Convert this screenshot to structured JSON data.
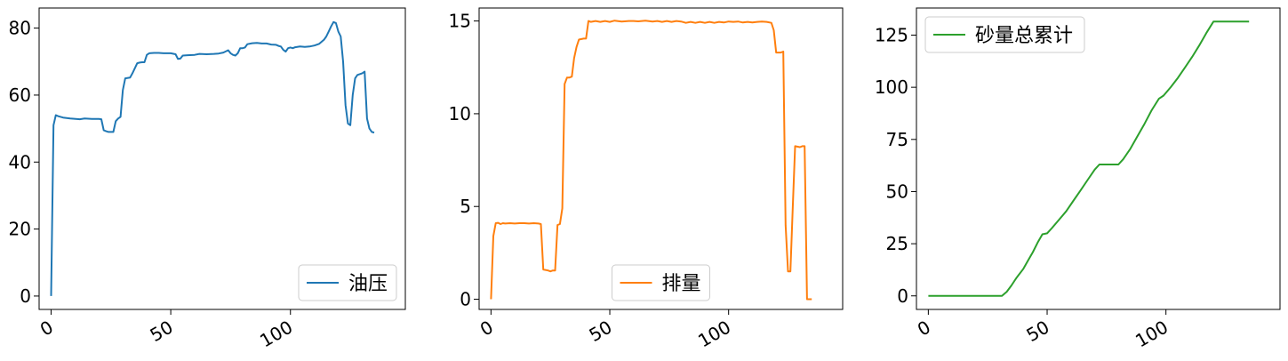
{
  "chart_data": [
    {
      "type": "line",
      "legend": "油压",
      "legend_position": "lower-right",
      "color": "#1f77b4",
      "xlim": [
        -5,
        148
      ],
      "ylim": [
        -4,
        86
      ],
      "xticks": [
        0,
        50,
        100
      ],
      "yticks": [
        0,
        20,
        40,
        60,
        80
      ],
      "series": [
        {
          "name": "油压",
          "points": [
            [
              0,
              0
            ],
            [
              1,
              51
            ],
            [
              2,
              54
            ],
            [
              3,
              53.7
            ],
            [
              5,
              53.3
            ],
            [
              8,
              53
            ],
            [
              12,
              52.8
            ],
            [
              14,
              53
            ],
            [
              17,
              52.9
            ],
            [
              20,
              52.9
            ],
            [
              21,
              52.8
            ],
            [
              22,
              49.5
            ],
            [
              23,
              49.2
            ],
            [
              24,
              49
            ],
            [
              25,
              49
            ],
            [
              26,
              49
            ],
            [
              27,
              52.2
            ],
            [
              28,
              53
            ],
            [
              29,
              53.5
            ],
            [
              30,
              61.5
            ],
            [
              31,
              65
            ],
            [
              33,
              65.2
            ],
            [
              34,
              66.5
            ],
            [
              36,
              69.5
            ],
            [
              37,
              69.7
            ],
            [
              38,
              69.8
            ],
            [
              39,
              69.8
            ],
            [
              40,
              72
            ],
            [
              41,
              72.5
            ],
            [
              43,
              72.6
            ],
            [
              45,
              72.6
            ],
            [
              47,
              72.5
            ],
            [
              50,
              72.5
            ],
            [
              52,
              72.2
            ],
            [
              53,
              70.8
            ],
            [
              54,
              70.9
            ],
            [
              55,
              71.8
            ],
            [
              57,
              71.9
            ],
            [
              60,
              72
            ],
            [
              62,
              72.3
            ],
            [
              65,
              72.2
            ],
            [
              68,
              72.3
            ],
            [
              70,
              72.4
            ],
            [
              72,
              72.7
            ],
            [
              74,
              73.4
            ],
            [
              75,
              72.5
            ],
            [
              76,
              72
            ],
            [
              77,
              71.8
            ],
            [
              78,
              72.5
            ],
            [
              79,
              74
            ],
            [
              80,
              74
            ],
            [
              81,
              74.2
            ],
            [
              82,
              75.2
            ],
            [
              84,
              75.5
            ],
            [
              86,
              75.6
            ],
            [
              88,
              75.4
            ],
            [
              90,
              75.4
            ],
            [
              92,
              75.1
            ],
            [
              94,
              75
            ],
            [
              95,
              74.7
            ],
            [
              96,
              74.5
            ],
            [
              97,
              73.5
            ],
            [
              98,
              73
            ],
            [
              99,
              74
            ],
            [
              100,
              74.2
            ],
            [
              101,
              74
            ],
            [
              102,
              74.3
            ],
            [
              104,
              74.5
            ],
            [
              106,
              74.4
            ],
            [
              108,
              74.5
            ],
            [
              110,
              74.8
            ],
            [
              112,
              75.3
            ],
            [
              114,
              76.5
            ],
            [
              115,
              77.5
            ],
            [
              116,
              79
            ],
            [
              117,
              80.5
            ],
            [
              118,
              81.8
            ],
            [
              119,
              81.5
            ],
            [
              120,
              79
            ],
            [
              121,
              77.5
            ],
            [
              122,
              70
            ],
            [
              123,
              57
            ],
            [
              124,
              51.5
            ],
            [
              125,
              51
            ],
            [
              126,
              60
            ],
            [
              127,
              65
            ],
            [
              128,
              66
            ],
            [
              130,
              66.5
            ],
            [
              131,
              67
            ],
            [
              132,
              53
            ],
            [
              133,
              50
            ],
            [
              134,
              49
            ],
            [
              135,
              48.8
            ]
          ]
        }
      ]
    },
    {
      "type": "line",
      "legend": "排量",
      "legend_position": "lower-center",
      "color": "#ff7f0e",
      "xlim": [
        -5,
        148
      ],
      "ylim": [
        -0.55,
        15.7
      ],
      "xticks": [
        0,
        50,
        100
      ],
      "yticks": [
        0,
        5,
        10,
        15
      ],
      "series": [
        {
          "name": "排量",
          "points": [
            [
              0,
              0
            ],
            [
              1,
              3.4
            ],
            [
              2,
              4.1
            ],
            [
              3,
              4.12
            ],
            [
              4,
              4.05
            ],
            [
              5,
              4.1
            ],
            [
              6,
              4.08
            ],
            [
              8,
              4.1
            ],
            [
              10,
              4.08
            ],
            [
              12,
              4.1
            ],
            [
              14,
              4.1
            ],
            [
              16,
              4.08
            ],
            [
              18,
              4.1
            ],
            [
              20,
              4.08
            ],
            [
              21,
              4.05
            ],
            [
              22,
              1.6
            ],
            [
              24,
              1.55
            ],
            [
              25,
              1.5
            ],
            [
              26,
              1.55
            ],
            [
              27,
              1.55
            ],
            [
              28,
              4
            ],
            [
              29,
              4.05
            ],
            [
              30,
              4.9
            ],
            [
              31,
              11.6
            ],
            [
              32,
              11.95
            ],
            [
              33,
              11.95
            ],
            [
              34,
              12
            ],
            [
              35,
              13
            ],
            [
              36,
              13.6
            ],
            [
              37,
              14.0
            ],
            [
              39,
              14.05
            ],
            [
              40,
              14.05
            ],
            [
              41,
              15.0
            ],
            [
              42,
              14.95
            ],
            [
              44,
              15
            ],
            [
              46,
              14.95
            ],
            [
              48,
              15
            ],
            [
              50,
              14.95
            ],
            [
              52,
              15.02
            ],
            [
              55,
              14.97
            ],
            [
              58,
              15
            ],
            [
              60,
              15
            ],
            [
              62,
              14.98
            ],
            [
              65,
              15.02
            ],
            [
              68,
              14.97
            ],
            [
              70,
              15
            ],
            [
              72,
              14.95
            ],
            [
              74,
              15
            ],
            [
              76,
              14.95
            ],
            [
              78,
              15
            ],
            [
              80,
              14.97
            ],
            [
              82,
              14.9
            ],
            [
              84,
              14.95
            ],
            [
              86,
              14.9
            ],
            [
              88,
              14.95
            ],
            [
              90,
              14.9
            ],
            [
              92,
              14.95
            ],
            [
              94,
              14.9
            ],
            [
              96,
              14.95
            ],
            [
              98,
              14.92
            ],
            [
              100,
              14.97
            ],
            [
              102,
              14.95
            ],
            [
              104,
              14.97
            ],
            [
              106,
              14.92
            ],
            [
              108,
              14.95
            ],
            [
              110,
              14.92
            ],
            [
              112,
              14.95
            ],
            [
              114,
              14.97
            ],
            [
              116,
              14.95
            ],
            [
              118,
              14.9
            ],
            [
              119,
              14.5
            ],
            [
              120,
              13.3
            ],
            [
              121,
              13.3
            ],
            [
              122,
              13.3
            ],
            [
              123,
              13.35
            ],
            [
              124,
              4
            ],
            [
              125,
              1.5
            ],
            [
              126,
              1.5
            ],
            [
              127,
              5
            ],
            [
              128,
              8.25
            ],
            [
              130,
              8.2
            ],
            [
              131,
              8.25
            ],
            [
              132,
              8.25
            ],
            [
              133,
              0
            ],
            [
              134,
              0
            ],
            [
              135,
              0
            ]
          ]
        }
      ]
    },
    {
      "type": "line",
      "legend": "砂量总累计",
      "legend_position": "upper-left",
      "color": "#2ca02c",
      "xlim": [
        -5,
        148
      ],
      "ylim": [
        -6.5,
        138
      ],
      "xticks": [
        0,
        50,
        100
      ],
      "yticks": [
        0,
        25,
        50,
        75,
        100,
        125
      ],
      "series": [
        {
          "name": "砂量总累计",
          "points": [
            [
              0,
              0
            ],
            [
              31,
              0
            ],
            [
              33,
              2
            ],
            [
              35,
              5
            ],
            [
              37,
              8.5
            ],
            [
              40,
              13
            ],
            [
              42,
              17
            ],
            [
              44,
              21
            ],
            [
              46,
              25.5
            ],
            [
              48,
              29.5
            ],
            [
              50,
              30
            ],
            [
              52,
              32.5
            ],
            [
              55,
              36.5
            ],
            [
              58,
              40.5
            ],
            [
              61,
              45.5
            ],
            [
              64,
              50.5
            ],
            [
              67,
              55.5
            ],
            [
              70,
              60.5
            ],
            [
              72,
              63
            ],
            [
              74,
              63
            ],
            [
              78,
              63
            ],
            [
              80,
              63
            ],
            [
              82,
              65.5
            ],
            [
              85,
              70.5
            ],
            [
              88,
              76.5
            ],
            [
              91,
              82.5
            ],
            [
              94,
              89
            ],
            [
              97,
              94.5
            ],
            [
              99,
              96
            ],
            [
              102,
              100
            ],
            [
              105,
              104.5
            ],
            [
              108,
              109.5
            ],
            [
              111,
              114.5
            ],
            [
              114,
              120
            ],
            [
              117,
              126
            ],
            [
              120,
              131.5
            ],
            [
              122,
              131.5
            ],
            [
              125,
              131.5
            ],
            [
              130,
              131.5
            ],
            [
              135,
              131.5
            ]
          ]
        }
      ]
    }
  ]
}
